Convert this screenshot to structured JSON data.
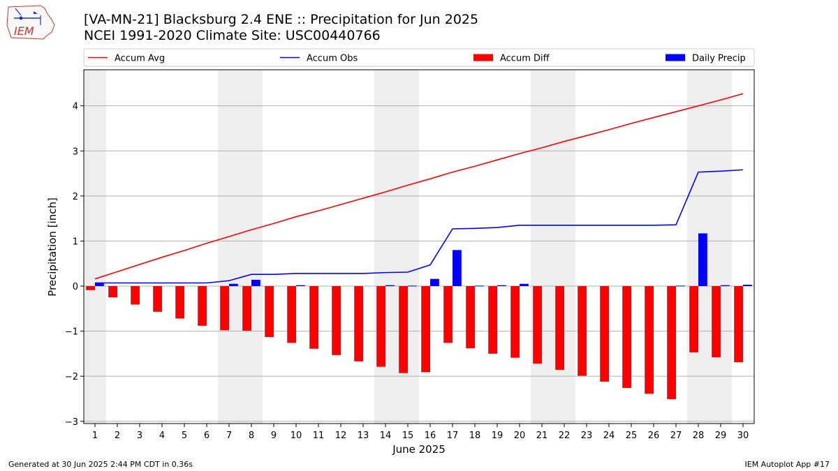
{
  "header": {
    "title_line1": "[VA-MN-21] Blacksburg 2.4 ENE :: Precipitation for Jun 2025",
    "title_line2": "NCEI 1991-2020 Climate Site: USC00440766",
    "logo_text": "IEM"
  },
  "footer": {
    "generated": "Generated at 30 Jun 2025 2:44 PM CDT in 0.36s",
    "app": "IEM Autoplot App #17"
  },
  "chart_data": {
    "type": "bar",
    "xlabel": "June 2025",
    "ylabel": "Precipitation [inch]",
    "ylim": [
      -3.05,
      4.8
    ],
    "yticks": [
      -3,
      -2,
      -1,
      0,
      1,
      2,
      3,
      4
    ],
    "ytick_labels": [
      "−3",
      "−2",
      "−1",
      "0",
      "1",
      "2",
      "3",
      "4"
    ],
    "grid": true,
    "legend_placement": "top, above plot",
    "categories": [
      1,
      2,
      3,
      4,
      5,
      6,
      7,
      8,
      9,
      10,
      11,
      12,
      13,
      14,
      15,
      16,
      17,
      18,
      19,
      20,
      21,
      22,
      23,
      24,
      25,
      26,
      27,
      28,
      29,
      30
    ],
    "weekend_shaded_days": [
      1,
      7,
      8,
      14,
      15,
      21,
      22,
      28,
      29
    ],
    "series": [
      {
        "name": "Accum Avg",
        "kind": "line",
        "color": "#ff0000",
        "values": [
          0.16,
          0.32,
          0.48,
          0.64,
          0.79,
          0.95,
          1.1,
          1.25,
          1.39,
          1.54,
          1.67,
          1.81,
          1.95,
          2.09,
          2.24,
          2.38,
          2.53,
          2.66,
          2.8,
          2.94,
          3.07,
          3.21,
          3.34,
          3.47,
          3.61,
          3.74,
          3.87,
          4.0,
          4.13,
          4.27
        ]
      },
      {
        "name": "Accum Obs",
        "kind": "line",
        "color": "#0000ff",
        "values": [
          0.07,
          0.07,
          0.07,
          0.07,
          0.07,
          0.07,
          0.12,
          0.26,
          0.26,
          0.28,
          0.28,
          0.28,
          0.28,
          0.3,
          0.31,
          0.47,
          1.27,
          1.28,
          1.3,
          1.35,
          1.35,
          1.35,
          1.35,
          1.35,
          1.35,
          1.35,
          1.36,
          2.53,
          2.55,
          2.58
        ]
      },
      {
        "name": "Accum Diff",
        "kind": "bar",
        "color": "#ff0000",
        "values": [
          -0.09,
          -0.25,
          -0.41,
          -0.57,
          -0.72,
          -0.88,
          -0.98,
          -0.99,
          -1.13,
          -1.26,
          -1.39,
          -1.53,
          -1.67,
          -1.79,
          -1.93,
          -1.91,
          -1.26,
          -1.38,
          -1.5,
          -1.59,
          -1.72,
          -1.86,
          -1.99,
          -2.12,
          -2.26,
          -2.39,
          -2.51,
          -1.47,
          -1.58,
          -1.69
        ]
      },
      {
        "name": "Daily Precip",
        "kind": "bar",
        "color": "#0000ff",
        "values": [
          0.07,
          0,
          0,
          0,
          0,
          0,
          0.05,
          0.14,
          0,
          0.02,
          0,
          0,
          0,
          0.02,
          0.01,
          0.16,
          0.8,
          0.01,
          0.02,
          0.05,
          0,
          0,
          0,
          0,
          0,
          0,
          0.01,
          1.17,
          0.02,
          0.03
        ]
      }
    ]
  }
}
